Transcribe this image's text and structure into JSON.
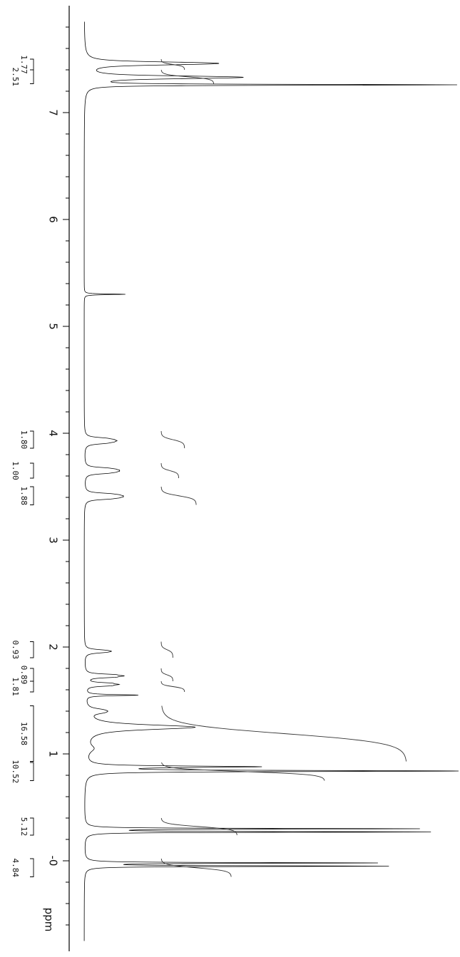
{
  "chart_data": {
    "type": "line",
    "orientation": "rotated",
    "xlabel": "ppm",
    "x_axis_range": [
      -0.75,
      7.85
    ],
    "x_axis_reversed": true,
    "major_ticks": [
      {
        "value": 7,
        "label": "7"
      },
      {
        "value": 6,
        "label": "6"
      },
      {
        "value": 5,
        "label": "5"
      },
      {
        "value": 4,
        "label": "4"
      },
      {
        "value": 3,
        "label": "3"
      },
      {
        "value": 2,
        "label": "2"
      },
      {
        "value": 1,
        "label": "1"
      },
      {
        "value": 0,
        "label": "-0"
      }
    ],
    "minor_tick_step": 0.2,
    "grid": false,
    "peaks": [
      {
        "ppm": 7.46,
        "intensity": 0.13,
        "width": 0.012,
        "multiplet": 4,
        "spacing": 0.006
      },
      {
        "ppm": 7.33,
        "intensity": 0.19,
        "width": 0.012,
        "multiplet": 3,
        "spacing": 0.007
      },
      {
        "ppm": 7.26,
        "intensity": 0.98,
        "width": 0.005,
        "multiplet": 1,
        "spacing": 0
      },
      {
        "ppm": 5.3,
        "intensity": 0.11,
        "width": 0.004,
        "multiplet": 1,
        "spacing": 0
      },
      {
        "ppm": 3.93,
        "intensity": 0.045,
        "width": 0.01,
        "multiplet": 5,
        "spacing": 0.012
      },
      {
        "ppm": 3.65,
        "intensity": 0.045,
        "width": 0.009,
        "multiplet": 6,
        "spacing": 0.01
      },
      {
        "ppm": 3.41,
        "intensity": 0.05,
        "width": 0.009,
        "multiplet": 6,
        "spacing": 0.01
      },
      {
        "ppm": 1.96,
        "intensity": 0.04,
        "width": 0.01,
        "multiplet": 3,
        "spacing": 0.01
      },
      {
        "ppm": 1.73,
        "intensity": 0.07,
        "width": 0.008,
        "multiplet": 3,
        "spacing": 0.012
      },
      {
        "ppm": 1.65,
        "intensity": 0.06,
        "width": 0.008,
        "multiplet": 3,
        "spacing": 0.012
      },
      {
        "ppm": 1.55,
        "intensity": 0.14,
        "width": 0.006,
        "multiplet": 1,
        "spacing": 0
      },
      {
        "ppm": 1.4,
        "intensity": 0.03,
        "width": 0.015,
        "multiplet": 3,
        "spacing": 0.015
      },
      {
        "ppm": 1.25,
        "intensity": 0.18,
        "width": 0.025,
        "multiplet": 2,
        "spacing": 0.01
      },
      {
        "ppm": 1.05,
        "intensity": 0.02,
        "width": 0.04,
        "multiplet": 1,
        "spacing": 0
      },
      {
        "ppm": 0.88,
        "intensity": 0.45,
        "width": 0.008,
        "multiplet": 1,
        "spacing": 0
      },
      {
        "ppm": 0.84,
        "intensity": 1.0,
        "width": 0.006,
        "multiplet": 1,
        "spacing": 0
      },
      {
        "ppm": 0.3,
        "intensity": 0.88,
        "width": 0.004,
        "multiplet": 1,
        "spacing": 0
      },
      {
        "ppm": 0.27,
        "intensity": 0.91,
        "width": 0.004,
        "multiplet": 1,
        "spacing": 0
      },
      {
        "ppm": -0.02,
        "intensity": 0.77,
        "width": 0.004,
        "multiplet": 1,
        "spacing": 0
      },
      {
        "ppm": -0.05,
        "intensity": 0.8,
        "width": 0.004,
        "multiplet": 1,
        "spacing": 0
      }
    ],
    "integrals": [
      {
        "label": "1.77",
        "from": 7.5,
        "to": 7.4,
        "cumulative": 0.04
      },
      {
        "label": "2.51",
        "from": 7.4,
        "to": 7.27,
        "cumulative": 0.09
      },
      {
        "label": "1.80",
        "from": 4.02,
        "to": 3.86,
        "cumulative": 0.04
      },
      {
        "label": "1.00",
        "from": 3.72,
        "to": 3.58,
        "cumulative": 0.03
      },
      {
        "label": "1.88",
        "from": 3.5,
        "to": 3.33,
        "cumulative": 0.06
      },
      {
        "label": "0.93",
        "from": 2.05,
        "to": 1.9,
        "cumulative": 0.02
      },
      {
        "label": "0.89",
        "from": 1.8,
        "to": 1.68,
        "cumulative": 0.02
      },
      {
        "label": "1.81",
        "from": 1.68,
        "to": 1.58,
        "cumulative": 0.04
      },
      {
        "label": "16.58",
        "from": 1.45,
        "to": 0.93,
        "cumulative": 0.42
      },
      {
        "label": "10.52",
        "from": 0.92,
        "to": 0.75,
        "cumulative": 0.28
      },
      {
        "label": "5.12",
        "from": 0.4,
        "to": 0.24,
        "cumulative": 0.13
      },
      {
        "label": "4.84",
        "from": 0.02,
        "to": -0.15,
        "cumulative": 0.12
      }
    ]
  }
}
